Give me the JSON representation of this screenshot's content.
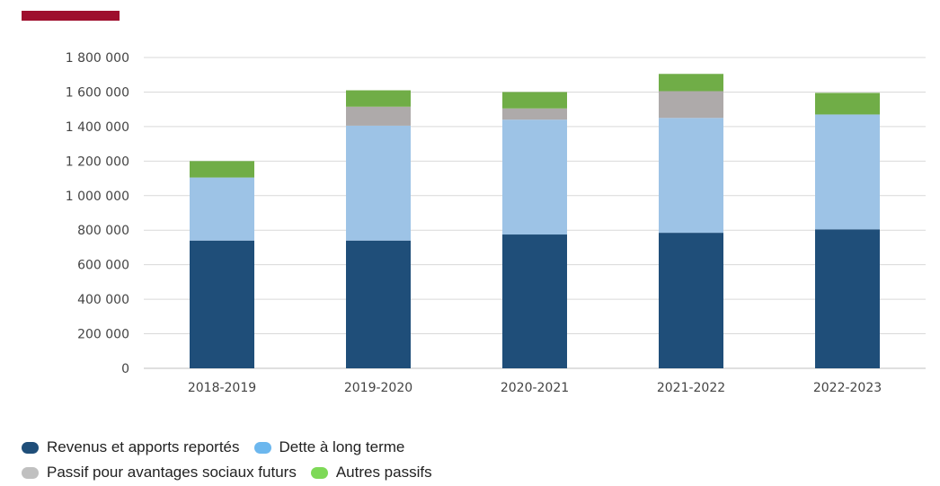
{
  "header": {
    "accent_color": "#9E0E2D"
  },
  "chart_data": {
    "type": "bar",
    "stacked": true,
    "categories": [
      "2018-2019",
      "2019-2020",
      "2020-2021",
      "2021-2022",
      "2022-2023"
    ],
    "series": [
      {
        "name": "Revenus et apports reportés",
        "color": "#1F4E79",
        "values": [
          740000,
          740000,
          775000,
          785000,
          805000
        ]
      },
      {
        "name": "Dette à long terme",
        "color": "#9DC3E6",
        "values": [
          365000,
          665000,
          665000,
          665000,
          665000
        ]
      },
      {
        "name": "Passif pour avantages sociaux futurs",
        "color": "#AEAAAA",
        "values": [
          0,
          110000,
          65000,
          155000,
          0
        ]
      },
      {
        "name": "Autres passifs",
        "color": "#70AD47",
        "values": [
          95000,
          95000,
          95000,
          100000,
          125000
        ]
      }
    ],
    "y_ticks": [
      "0",
      "200 000",
      "400 000",
      "600 000",
      "800 000",
      "1 000 000",
      "1 200 000",
      "1 400 000",
      "1 600 000",
      "1 800 000"
    ],
    "ylim": [
      0,
      1800000
    ],
    "title": "",
    "xlabel": "",
    "ylabel": "",
    "grid": true,
    "legend_position": "bottom-left",
    "legend_swatch_colors": [
      "#1F4E79",
      "#6CB7EE",
      "#C0C0C0",
      "#7ED957"
    ]
  }
}
